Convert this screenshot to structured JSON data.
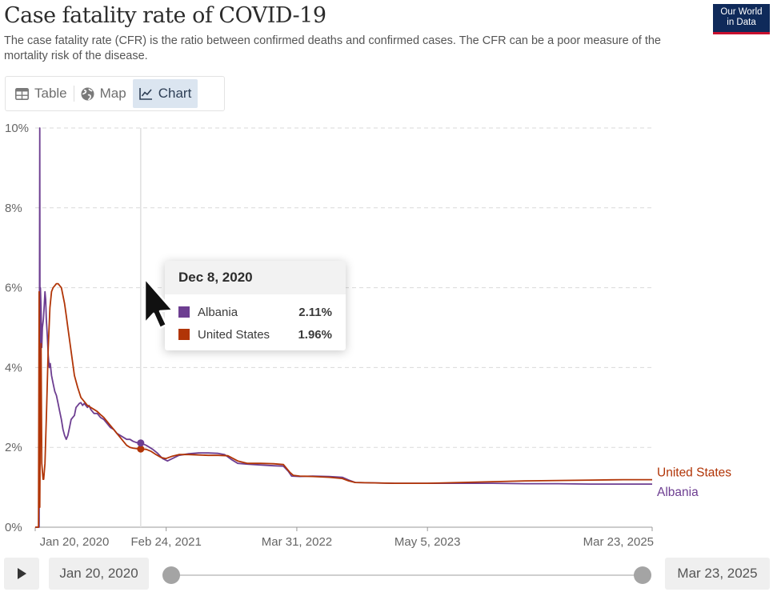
{
  "header": {
    "title": "Case fatality rate of COVID-19",
    "subtitle": "The case fatality rate (CFR) is the ratio between confirmed deaths and confirmed cases. The CFR can be a poor measure of the mortality risk of the disease.",
    "logo_line1": "Our World",
    "logo_line2": "in Data"
  },
  "tabs": [
    {
      "label": "Table",
      "icon": "table-icon"
    },
    {
      "label": "Map",
      "icon": "globe-icon"
    },
    {
      "label": "Chart",
      "icon": "line-chart-icon",
      "active": true
    }
  ],
  "tooltip": {
    "date": "Dec 8, 2020",
    "rows": [
      {
        "name": "Albania",
        "value": "2.11%",
        "color": "#6d3e91"
      },
      {
        "name": "United States",
        "value": "1.96%",
        "color": "#b13507"
      }
    ]
  },
  "timeline": {
    "start_label": "Jan 20, 2020",
    "end_label": "Mar 23, 2025"
  },
  "chart_data": {
    "type": "line",
    "title": "Case fatality rate of COVID-19",
    "x_unit": "days since Jan 20, 2020",
    "xlim": [
      0,
      1889
    ],
    "ylim": [
      0,
      10
    ],
    "y_ticks": [
      0,
      2,
      4,
      6,
      8,
      10
    ],
    "y_tick_labels": [
      "0%",
      "2%",
      "4%",
      "6%",
      "8%",
      "10%"
    ],
    "x_ticks": [
      0,
      401,
      801,
      1201,
      1889
    ],
    "x_tick_labels": [
      "Jan 20, 2020",
      "Feb 24, 2021",
      "Mar 31, 2022",
      "May 5, 2023",
      "Mar 23, 2025"
    ],
    "hover_x": 323,
    "series": [
      {
        "name": "United States",
        "color": "#b13507",
        "points": [
          [
            0,
            0
          ],
          [
            10,
            0
          ],
          [
            12,
            5.9
          ],
          [
            14,
            0.5
          ],
          [
            16,
            3.0
          ],
          [
            18,
            4.6
          ],
          [
            20,
            1.6
          ],
          [
            22,
            1.4
          ],
          [
            24,
            1.2
          ],
          [
            26,
            1.2
          ],
          [
            30,
            1.6
          ],
          [
            35,
            3.0
          ],
          [
            40,
            4.5
          ],
          [
            45,
            5.5
          ],
          [
            50,
            5.9
          ],
          [
            55,
            6.0
          ],
          [
            60,
            6.05
          ],
          [
            65,
            6.1
          ],
          [
            70,
            6.1
          ],
          [
            75,
            6.05
          ],
          [
            80,
            6.0
          ],
          [
            85,
            5.8
          ],
          [
            90,
            5.6
          ],
          [
            95,
            5.3
          ],
          [
            100,
            5.0
          ],
          [
            110,
            4.4
          ],
          [
            120,
            3.8
          ],
          [
            130,
            3.5
          ],
          [
            140,
            3.25
          ],
          [
            150,
            3.15
          ],
          [
            160,
            3.05
          ],
          [
            170,
            3.0
          ],
          [
            180,
            2.95
          ],
          [
            190,
            2.9
          ],
          [
            200,
            2.82
          ],
          [
            210,
            2.75
          ],
          [
            220,
            2.65
          ],
          [
            230,
            2.55
          ],
          [
            240,
            2.45
          ],
          [
            250,
            2.35
          ],
          [
            260,
            2.25
          ],
          [
            270,
            2.15
          ],
          [
            280,
            2.05
          ],
          [
            290,
            2.0
          ],
          [
            300,
            1.98
          ],
          [
            310,
            1.97
          ],
          [
            323,
            1.96
          ],
          [
            340,
            1.95
          ],
          [
            355,
            1.9
          ],
          [
            370,
            1.82
          ],
          [
            385,
            1.75
          ],
          [
            400,
            1.72
          ],
          [
            420,
            1.78
          ],
          [
            440,
            1.82
          ],
          [
            470,
            1.82
          ],
          [
            500,
            1.81
          ],
          [
            530,
            1.8
          ],
          [
            560,
            1.8
          ],
          [
            590,
            1.79
          ],
          [
            620,
            1.66
          ],
          [
            650,
            1.6
          ],
          [
            690,
            1.6
          ],
          [
            730,
            1.59
          ],
          [
            760,
            1.57
          ],
          [
            780,
            1.37
          ],
          [
            790,
            1.3
          ],
          [
            810,
            1.28
          ],
          [
            850,
            1.27
          ],
          [
            900,
            1.25
          ],
          [
            940,
            1.22
          ],
          [
            960,
            1.16
          ],
          [
            980,
            1.12
          ],
          [
            1100,
            1.1
          ],
          [
            1200,
            1.1
          ],
          [
            1300,
            1.12
          ],
          [
            1400,
            1.14
          ],
          [
            1500,
            1.16
          ],
          [
            1600,
            1.17
          ],
          [
            1700,
            1.18
          ],
          [
            1800,
            1.19
          ],
          [
            1889,
            1.19
          ]
        ]
      },
      {
        "name": "Albania",
        "color": "#6d3e91",
        "points": [
          [
            0,
            0
          ],
          [
            12,
            0
          ],
          [
            13,
            5.0
          ],
          [
            14,
            10.0
          ],
          [
            15,
            2.0
          ],
          [
            16,
            6.0
          ],
          [
            18,
            5.5
          ],
          [
            20,
            4.5
          ],
          [
            22,
            5.0
          ],
          [
            25,
            5.2
          ],
          [
            28,
            5.6
          ],
          [
            30,
            5.9
          ],
          [
            32,
            5.7
          ],
          [
            34,
            5.2
          ],
          [
            37,
            4.8
          ],
          [
            40,
            4.3
          ],
          [
            43,
            4.0
          ],
          [
            46,
            4.1
          ],
          [
            50,
            3.8
          ],
          [
            55,
            3.6
          ],
          [
            60,
            3.4
          ],
          [
            65,
            3.3
          ],
          [
            70,
            3.1
          ],
          [
            75,
            2.9
          ],
          [
            80,
            2.7
          ],
          [
            85,
            2.45
          ],
          [
            90,
            2.3
          ],
          [
            95,
            2.2
          ],
          [
            100,
            2.3
          ],
          [
            105,
            2.5
          ],
          [
            110,
            2.7
          ],
          [
            115,
            2.75
          ],
          [
            120,
            2.8
          ],
          [
            125,
            3.0
          ],
          [
            130,
            3.05
          ],
          [
            135,
            3.1
          ],
          [
            140,
            3.12
          ],
          [
            145,
            3.05
          ],
          [
            150,
            3.1
          ],
          [
            155,
            3.05
          ],
          [
            160,
            3.0
          ],
          [
            165,
            3.05
          ],
          [
            170,
            2.95
          ],
          [
            180,
            2.85
          ],
          [
            190,
            2.85
          ],
          [
            200,
            2.75
          ],
          [
            210,
            2.7
          ],
          [
            220,
            2.6
          ],
          [
            230,
            2.5
          ],
          [
            240,
            2.45
          ],
          [
            250,
            2.35
          ],
          [
            260,
            2.3
          ],
          [
            270,
            2.25
          ],
          [
            280,
            2.2
          ],
          [
            290,
            2.2
          ],
          [
            300,
            2.15
          ],
          [
            310,
            2.12
          ],
          [
            323,
            2.11
          ],
          [
            340,
            2.05
          ],
          [
            360,
            1.95
          ],
          [
            375,
            1.85
          ],
          [
            390,
            1.72
          ],
          [
            405,
            1.66
          ],
          [
            420,
            1.72
          ],
          [
            440,
            1.8
          ],
          [
            470,
            1.84
          ],
          [
            500,
            1.86
          ],
          [
            530,
            1.86
          ],
          [
            560,
            1.85
          ],
          [
            580,
            1.82
          ],
          [
            600,
            1.7
          ],
          [
            620,
            1.6
          ],
          [
            650,
            1.58
          ],
          [
            690,
            1.56
          ],
          [
            730,
            1.54
          ],
          [
            760,
            1.53
          ],
          [
            775,
            1.4
          ],
          [
            785,
            1.28
          ],
          [
            810,
            1.27
          ],
          [
            850,
            1.28
          ],
          [
            900,
            1.27
          ],
          [
            940,
            1.25
          ],
          [
            960,
            1.18
          ],
          [
            980,
            1.12
          ],
          [
            1100,
            1.1
          ],
          [
            1200,
            1.1
          ],
          [
            1300,
            1.1
          ],
          [
            1400,
            1.1
          ],
          [
            1500,
            1.09
          ],
          [
            1600,
            1.09
          ],
          [
            1700,
            1.08
          ],
          [
            1800,
            1.08
          ],
          [
            1889,
            1.08
          ]
        ]
      }
    ],
    "end_labels": [
      "United States",
      "Albania"
    ]
  }
}
